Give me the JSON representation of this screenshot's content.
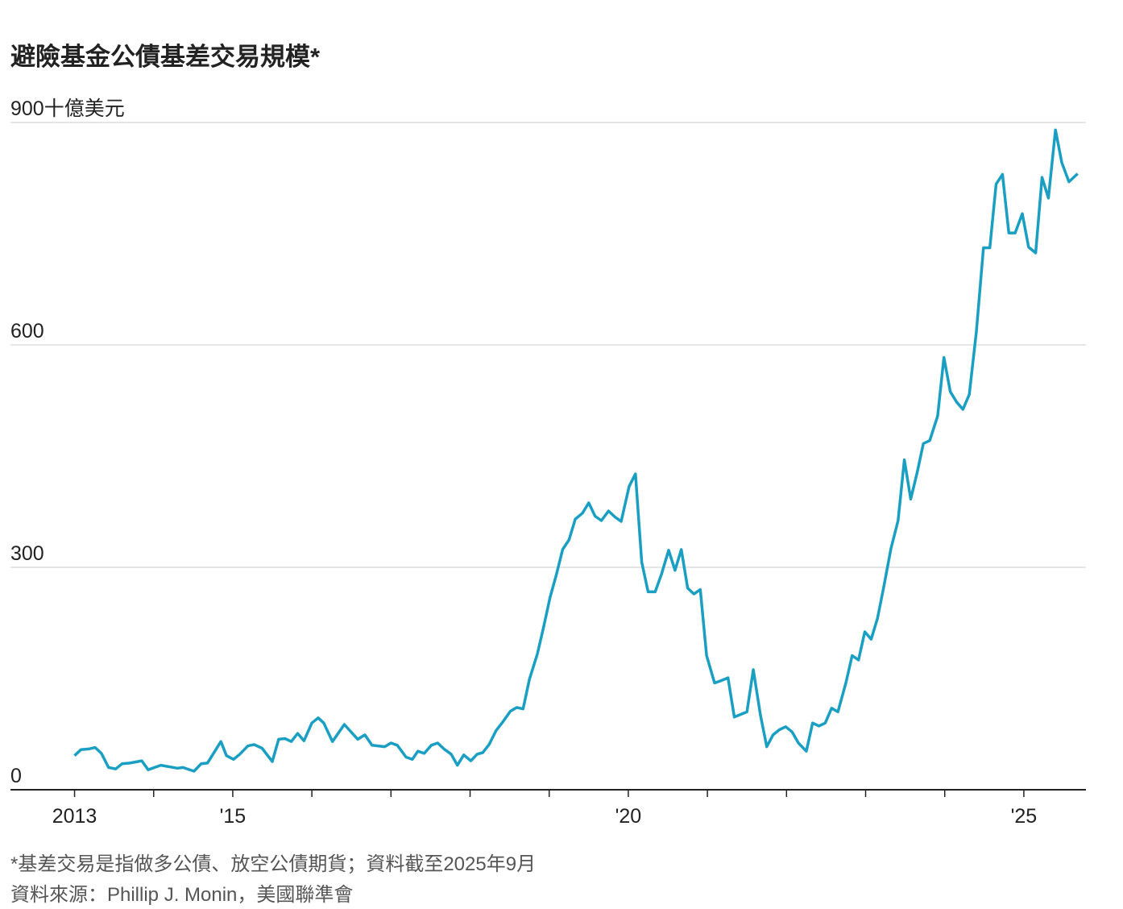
{
  "chart_data": {
    "type": "line",
    "title": "避險基金公債基差交易規模*",
    "x": [
      2013.0,
      2013.08,
      2013.18,
      2013.26,
      2013.34,
      2013.43,
      2013.52,
      2013.6,
      2013.7,
      2013.85,
      2013.93,
      2014.09,
      2014.3,
      2014.37,
      2014.51,
      2014.6,
      2014.68,
      2014.85,
      2014.92,
      2015.01,
      2015.09,
      2015.19,
      2015.27,
      2015.37,
      2015.5,
      2015.58,
      2015.66,
      2015.74,
      2015.82,
      2015.9,
      2016.0,
      2016.08,
      2016.15,
      2016.26,
      2016.41,
      2016.58,
      2016.67,
      2016.76,
      2016.92,
      2017.0,
      2017.08,
      2017.19,
      2017.27,
      2017.34,
      2017.42,
      2017.51,
      2017.59,
      2017.67,
      2017.76,
      2017.84,
      2017.92,
      2018.01,
      2018.09,
      2018.16,
      2018.24,
      2018.33,
      2018.41,
      2018.51,
      2018.59,
      2018.67,
      2018.75,
      2018.85,
      2018.93,
      2019.01,
      2019.09,
      2019.17,
      2019.25,
      2019.33,
      2019.42,
      2019.5,
      2019.58,
      2019.66,
      2019.75,
      2019.83,
      2019.91,
      2020.01,
      2020.09,
      2020.17,
      2020.25,
      2020.34,
      2020.42,
      2020.51,
      2020.59,
      2020.67,
      2020.75,
      2020.83,
      2020.91,
      2020.99,
      2021.09,
      2021.17,
      2021.26,
      2021.34,
      2021.5,
      2021.58,
      2021.67,
      2021.75,
      2021.83,
      2021.91,
      2021.99,
      2022.07,
      2022.15,
      2022.25,
      2022.33,
      2022.41,
      2022.49,
      2022.57,
      2022.65,
      2022.75,
      2022.83,
      2022.91,
      2022.99,
      2023.07,
      2023.15,
      2023.23,
      2023.32,
      2023.41,
      2023.49,
      2023.57,
      2023.65,
      2023.73,
      2023.81,
      2023.91,
      2023.99,
      2024.07,
      2024.15,
      2024.23,
      2024.31,
      2024.4,
      2024.49,
      2024.57,
      2024.65,
      2024.73,
      2024.81,
      2024.89,
      2024.98,
      2025.06,
      2025.15,
      2025.23,
      2025.31,
      2025.4,
      2025.48,
      2025.57,
      2025.68
    ],
    "values": [
      46,
      54,
      55,
      57,
      49,
      30,
      28,
      35,
      36,
      39,
      27,
      33,
      29,
      30,
      25,
      35,
      36,
      65,
      46,
      41,
      48,
      59,
      61,
      56,
      38,
      68,
      69,
      65,
      76,
      66,
      90,
      97,
      90,
      65,
      88,
      68,
      74,
      60,
      58,
      63,
      60,
      44,
      41,
      52,
      49,
      60,
      63,
      55,
      48,
      33,
      47,
      39,
      48,
      50,
      61,
      80,
      91,
      106,
      111,
      109,
      149,
      183,
      220,
      259,
      290,
      324,
      337,
      365,
      373,
      387,
      369,
      363,
      376,
      368,
      362,
      409,
      426,
      307,
      267,
      267,
      291,
      323,
      296,
      324,
      272,
      264,
      270,
      181,
      144,
      147,
      151,
      98,
      105,
      162,
      101,
      58,
      74,
      81,
      85,
      78,
      63,
      52,
      90,
      86,
      90,
      110,
      105,
      144,
      181,
      175,
      213,
      203,
      231,
      274,
      325,
      363,
      445,
      392,
      427,
      467,
      471,
      504,
      583,
      537,
      523,
      513,
      533,
      618,
      731,
      731,
      817,
      830,
      751,
      751,
      777,
      732,
      724,
      826,
      798,
      890,
      846,
      820,
      831
    ],
    "color": "#1a9fc2",
    "xlim": [
      2012.19,
      2025.785
    ],
    "ylim": [
      0,
      900
    ],
    "yticks": [
      0,
      300,
      600,
      {
        "value": 900,
        "label": "900十億美元"
      }
    ],
    "xticks": [
      {
        "value": 2013,
        "label": "2013"
      },
      {
        "value": 2015,
        "label": "'15"
      },
      {
        "value": 2020,
        "label": "'20"
      },
      {
        "value": 2025,
        "label": "'25"
      }
    ],
    "xminor_ticks": [
      2014,
      2016,
      2017,
      2018,
      2019,
      2021,
      2022,
      2023,
      2024
    ],
    "grid": true,
    "notes": [
      "*基差交易是指做多公債、放空公債期貨；資料截至2025年9月",
      "資料來源：Phillip J. Monin，美國聯準會"
    ]
  }
}
